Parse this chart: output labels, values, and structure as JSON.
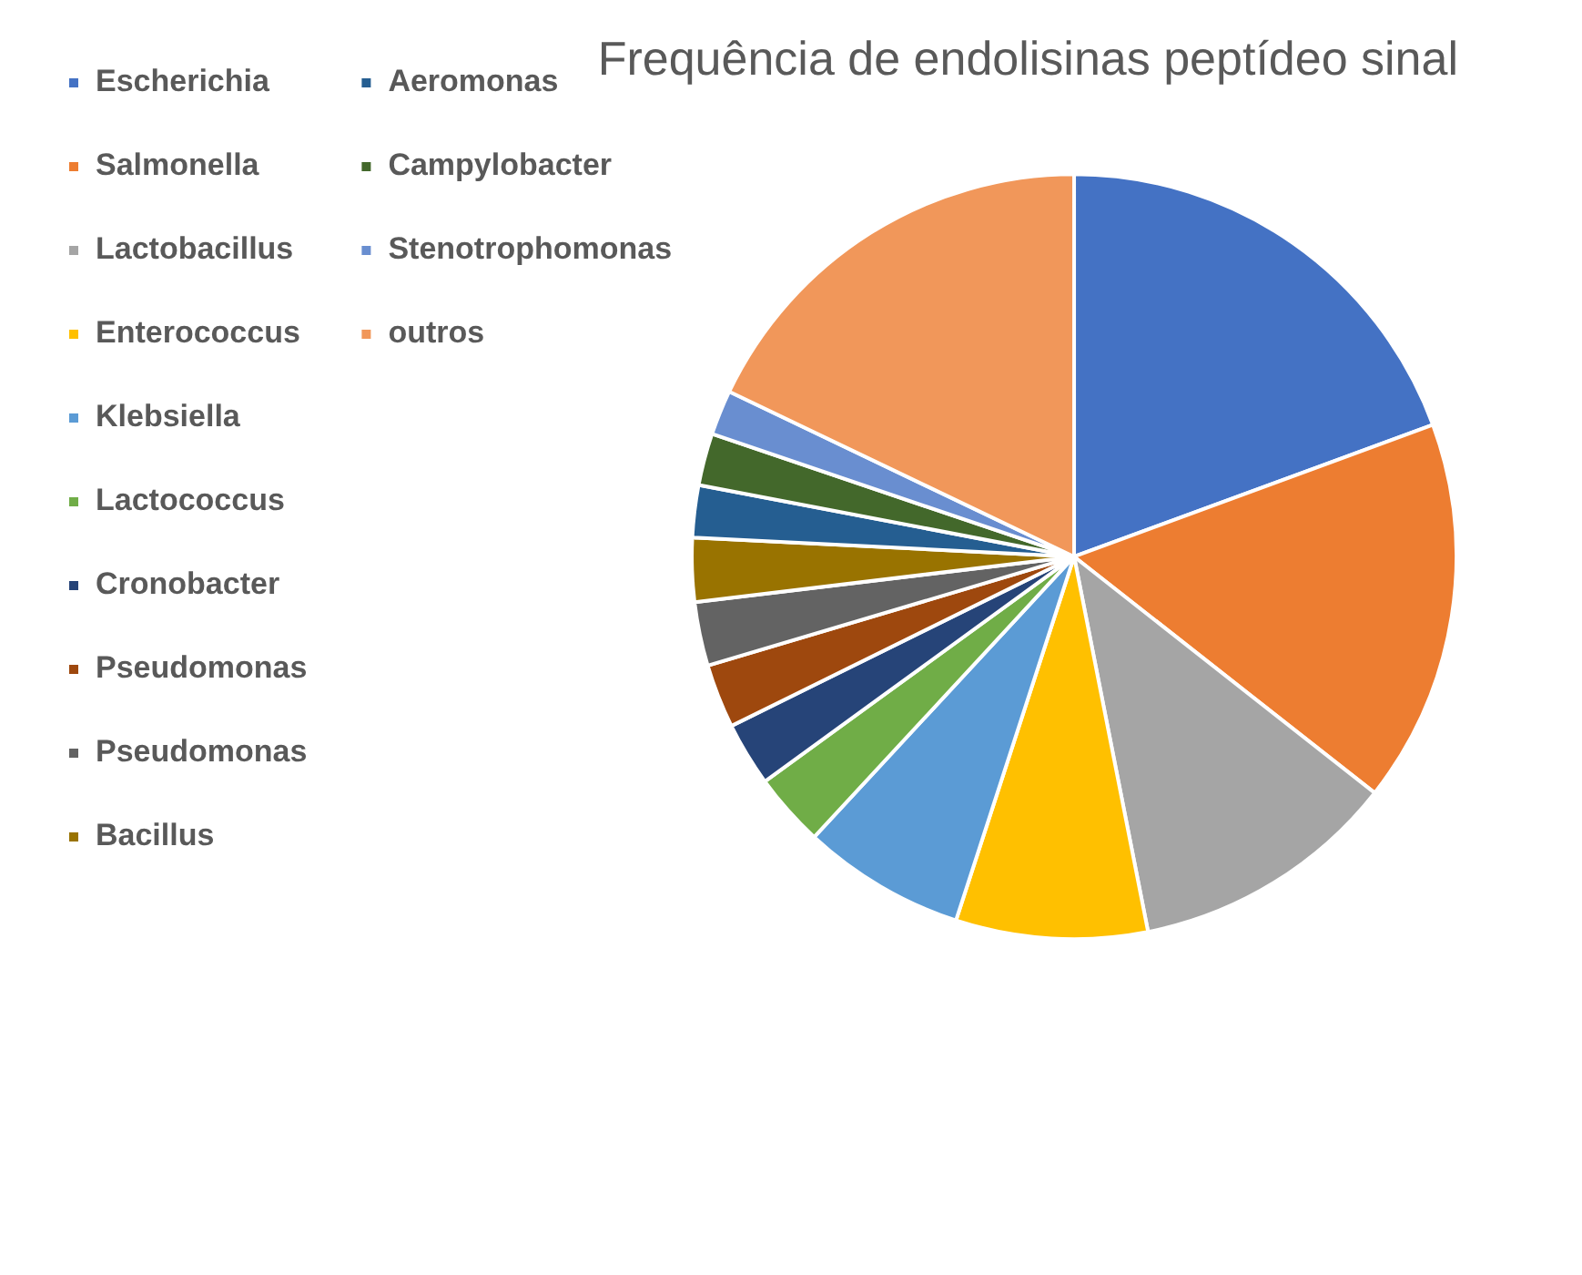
{
  "chart_data": {
    "type": "pie",
    "title": "Frequência de endolisinas peptídeo sinal",
    "categories": [
      "Escherichia",
      "Salmonella",
      "Lactobacillus",
      "Enterococcus",
      "Klebsiella",
      "Lactococcus",
      "Cronobacter",
      "Pseudomonas",
      "Pseudomonas",
      "Bacillus",
      "Aeromonas",
      "Campylobacter",
      "Stenotrophomonas",
      "outros"
    ],
    "values": [
      19.4,
      16.2,
      11.3,
      8.1,
      6.9,
      3.1,
      2.7,
      2.7,
      2.7,
      2.7,
      2.2,
      2.2,
      1.9,
      17.9
    ],
    "colors": [
      "#4472c4",
      "#ed7d31",
      "#a5a5a5",
      "#ffc000",
      "#5b9bd5",
      "#70ad47",
      "#264478",
      "#9e480e",
      "#636363",
      "#997300",
      "#255e91",
      "#43682b",
      "#698ed0",
      "#f1975a"
    ],
    "legend": "left"
  }
}
